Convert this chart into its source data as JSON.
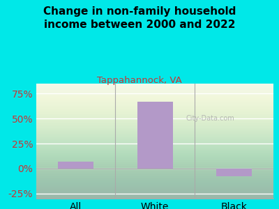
{
  "categories": [
    "All",
    "White",
    "Black"
  ],
  "values": [
    7,
    67,
    -8
  ],
  "bar_color": "#b399c8",
  "title": "Change in non-family household\nincome between 2000 and 2022",
  "subtitle": "Tappahannock, VA",
  "title_color": "#000000",
  "subtitle_color": "#cc3333",
  "ylabel_color": "#cc3333",
  "background_color": "#00e8e8",
  "ylim": [
    -30,
    85
  ],
  "yticks": [
    -25,
    0,
    25,
    50,
    75
  ],
  "watermark": "City-Data.com",
  "bar_width": 0.45
}
